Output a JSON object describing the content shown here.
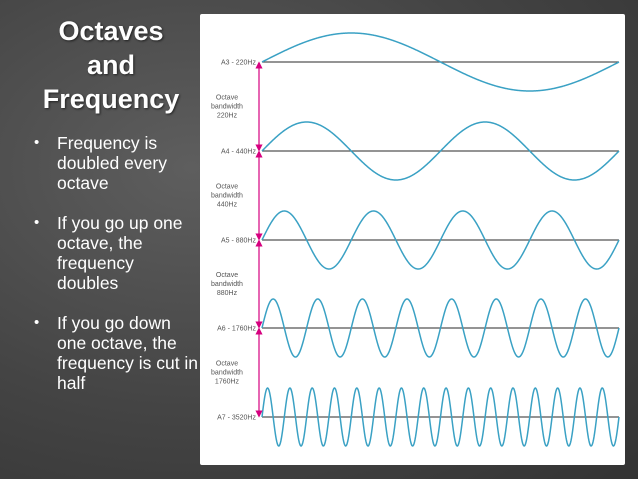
{
  "slide": {
    "title_lines": [
      "Octaves",
      "and",
      "Frequency"
    ],
    "bullets": [
      "Frequency is doubled every octave",
      "If you go up one octave, the frequency doubles",
      "If you go down one octave, the frequency is cut in half"
    ],
    "bullet_glyph": "•"
  },
  "diagram": {
    "wave_color": "#3aa1c4",
    "axis_color": "#555555",
    "arrow_color": "#d6007f",
    "waves": [
      {
        "label": "A3 - 220Hz",
        "cycles": 1
      },
      {
        "label": "A4 - 440Hz",
        "cycles": 2
      },
      {
        "label": "A5 - 880Hz",
        "cycles": 4
      },
      {
        "label": "A6 - 1760Hz",
        "cycles": 8
      },
      {
        "label": "A7 - 3520Hz",
        "cycles": 16
      }
    ],
    "bandwidths": [
      {
        "lines": [
          "Octave",
          "bandwidth",
          "220Hz"
        ]
      },
      {
        "lines": [
          "Octave",
          "bandwidth",
          "440Hz"
        ]
      },
      {
        "lines": [
          "Octave",
          "bandwidth",
          "880Hz"
        ]
      },
      {
        "lines": [
          "Octave",
          "bandwidth",
          "1760Hz"
        ]
      }
    ]
  }
}
